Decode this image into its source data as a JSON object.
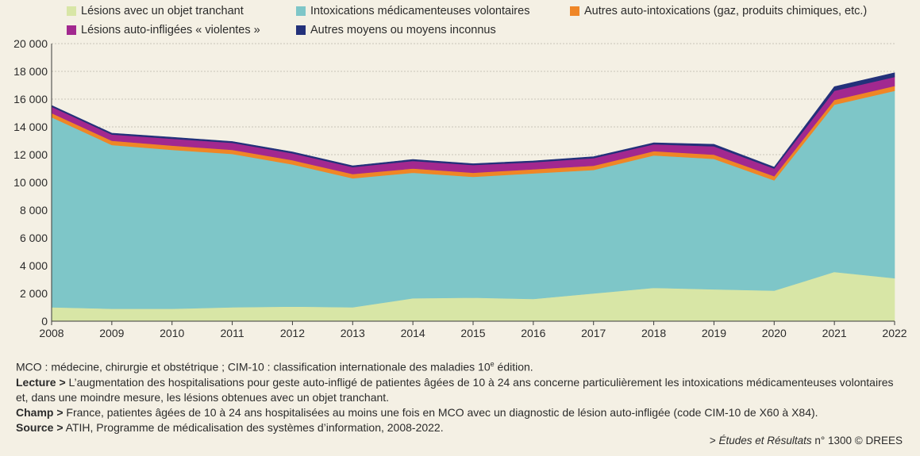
{
  "chart_data": {
    "type": "area",
    "stacked": true,
    "x": [
      2008,
      2009,
      2010,
      2011,
      2012,
      2013,
      2014,
      2015,
      2016,
      2017,
      2018,
      2019,
      2020,
      2021,
      2022
    ],
    "x_ticks": [
      "2008",
      "2009",
      "2010",
      "2011",
      "2012",
      "2013",
      "2014",
      "2015",
      "2016",
      "2017",
      "2018",
      "2019",
      "2020",
      "2021",
      "2022"
    ],
    "ylim": [
      0,
      20000
    ],
    "y_ticks": [
      0,
      2000,
      4000,
      6000,
      8000,
      10000,
      12000,
      14000,
      16000,
      18000,
      20000
    ],
    "y_tick_labels": [
      "0",
      "2 000",
      "4 000",
      "6 000",
      "8 000",
      "10 000",
      "12 000",
      "14 000",
      "16 000",
      "18 000",
      "20 000"
    ],
    "grid": true,
    "legend_position": "top",
    "series": [
      {
        "name": "Lésions avec un objet tranchant",
        "color": "#d8e6a6",
        "values": [
          1000,
          900,
          900,
          1000,
          1050,
          1000,
          1650,
          1700,
          1600,
          2000,
          2400,
          2300,
          2200,
          3550,
          3100
        ]
      },
      {
        "name": "Intoxications médicamenteuses volontaires",
        "color": "#7ec6c8",
        "values": [
          13700,
          11800,
          11450,
          11050,
          10250,
          9300,
          9050,
          8700,
          9050,
          8900,
          9550,
          9400,
          7950,
          12050,
          13500
        ]
      },
      {
        "name": "Autres auto-intoxications (gaz, produits chimiques, etc.)",
        "color": "#ef8626",
        "values": [
          300,
          300,
          300,
          300,
          300,
          300,
          300,
          300,
          300,
          300,
          300,
          300,
          300,
          350,
          350
        ]
      },
      {
        "name": "Lésions auto-infligées « violentes »",
        "color": "#a2288f",
        "values": [
          450,
          450,
          500,
          500,
          500,
          500,
          550,
          550,
          500,
          550,
          500,
          600,
          550,
          650,
          650
        ]
      },
      {
        "name": "Autres moyens ou moyens inconnus",
        "color": "#23317a",
        "values": [
          100,
          100,
          100,
          100,
          100,
          100,
          100,
          100,
          100,
          100,
          100,
          150,
          100,
          300,
          300
        ]
      }
    ]
  },
  "notes": {
    "line1": "MCO : médecine, chirurgie et obstétrique ; CIM-10 : classification internationale des maladies 10",
    "line1_sup": "e",
    "line1_end": " édition.",
    "lecture_label": "Lecture >",
    "lecture_text": " L’augmentation des hospitalisations pour geste auto-infligé de patientes âgées de 10 à 24 ans concerne particulièrement les intoxications médicamenteuses volontaires et, dans une moindre mesure, les lésions obtenues avec un objet tranchant.",
    "champ_label": "Champ >",
    "champ_text": " France, patientes âgées de 10 à 24 ans hospitalisées au moins une fois en MCO avec un diagnostic de lésion auto-infligée (code CIM-10 de X60 à X84).",
    "source_label": "Source >",
    "source_text": " ATIH, Programme de médicalisation des systèmes d’information, 2008-2022."
  },
  "credit": {
    "prefix": "> ",
    "title": "Études et Résultats",
    "rest": " n° 1300 © DREES"
  }
}
